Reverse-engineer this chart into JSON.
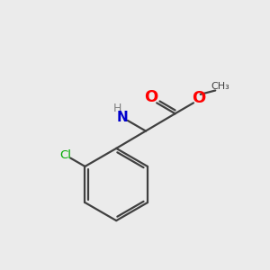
{
  "background_color": "#ebebeb",
  "bond_color": "#404040",
  "atom_colors": {
    "O": "#ff0000",
    "N": "#0000cd",
    "Cl": "#00aa00",
    "H": "#808080"
  },
  "figsize": [
    3.0,
    3.0
  ],
  "dpi": 100
}
